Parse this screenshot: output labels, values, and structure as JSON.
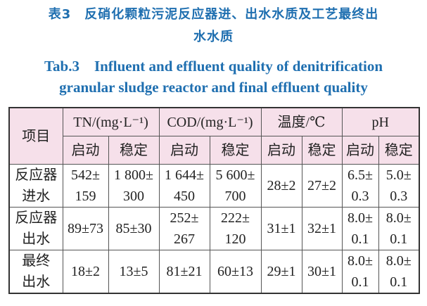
{
  "caption": {
    "cn_line1": "表3　反硝化颗粒污泥反应器进、出水水质及工艺最终出",
    "cn_line2": "水水质",
    "en_line1": "Tab.3　Influent and effluent quality of denitrification",
    "en_line2": "granular sludge reactor and final effluent quality"
  },
  "colors": {
    "caption": "#1f6fb0",
    "header_bg": "#f6e0ea"
  },
  "table": {
    "item_header": "项目",
    "groups": [
      "TN/(mg·L⁻¹)",
      "COD/(mg·L⁻¹)",
      "温度/℃",
      "pH"
    ],
    "sub": [
      "启动",
      "稳定",
      "启动",
      "稳定",
      "启动",
      "稳定",
      "启动",
      "稳定"
    ],
    "rows": [
      {
        "label": [
          "反应器",
          "进水"
        ],
        "cells": [
          [
            "542±",
            "159"
          ],
          [
            "1 800±",
            "300"
          ],
          [
            "1 644±",
            "450"
          ],
          [
            "5 600±",
            "700"
          ],
          [
            "28±2"
          ],
          [
            "27±2"
          ],
          [
            "6.5±",
            "0.3"
          ],
          [
            "5.0±",
            "0.3"
          ]
        ]
      },
      {
        "label": [
          "反应器",
          "出水"
        ],
        "cells": [
          [
            "89±73"
          ],
          [
            "85±30"
          ],
          [
            "252±",
            "267"
          ],
          [
            "222±",
            "120"
          ],
          [
            "31±1"
          ],
          [
            "32±1"
          ],
          [
            "8.0±",
            "0.1"
          ],
          [
            "8.0±",
            "0.1"
          ]
        ]
      },
      {
        "label": [
          "最终",
          "出水"
        ],
        "cells": [
          [
            "18±2"
          ],
          [
            "13±5"
          ],
          [
            "81±21"
          ],
          [
            "60±13"
          ],
          [
            "29±1"
          ],
          [
            "30±1"
          ],
          [
            "8.0±",
            "0.1"
          ],
          [
            "8.0±",
            "0.1"
          ]
        ]
      }
    ]
  }
}
